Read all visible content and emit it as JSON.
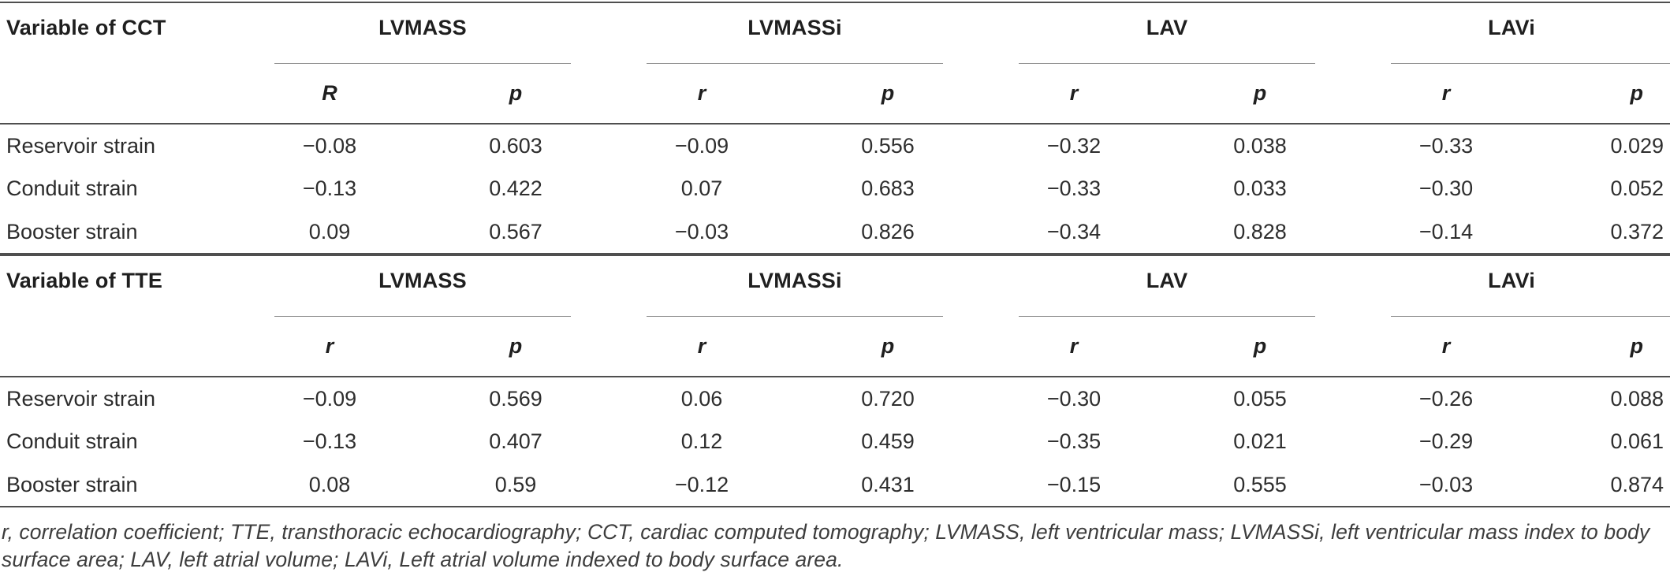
{
  "sections": [
    {
      "label": "Variable of CCT",
      "groups": [
        "LVMASS",
        "LVMASSi",
        "LAV",
        "LAVi"
      ],
      "subheaders": [
        "R",
        "p",
        "r",
        "p",
        "r",
        "p",
        "r",
        "p"
      ],
      "rows": [
        {
          "label": "Reservoir strain",
          "values": [
            "−0.08",
            "0.603",
            "−0.09",
            "0.556",
            "−0.32",
            "0.038",
            "−0.33",
            "0.029"
          ]
        },
        {
          "label": "Conduit strain",
          "values": [
            "−0.13",
            "0.422",
            "0.07",
            "0.683",
            "−0.33",
            "0.033",
            "−0.30",
            "0.052"
          ]
        },
        {
          "label": "Booster strain",
          "values": [
            "0.09",
            "0.567",
            "−0.03",
            "0.826",
            "−0.34",
            "0.828",
            "−0.14",
            "0.372"
          ]
        }
      ]
    },
    {
      "label": "Variable of TTE",
      "groups": [
        "LVMASS",
        "LVMASSi",
        "LAV",
        "LAVi"
      ],
      "subheaders": [
        "r",
        "p",
        "r",
        "p",
        "r",
        "p",
        "r",
        "p"
      ],
      "rows": [
        {
          "label": "Reservoir strain",
          "values": [
            "−0.09",
            "0.569",
            "0.06",
            "0.720",
            "−0.30",
            "0.055",
            "−0.26",
            "0.088"
          ]
        },
        {
          "label": "Conduit strain",
          "values": [
            "−0.13",
            "0.407",
            "0.12",
            "0.459",
            "−0.35",
            "0.021",
            "−0.29",
            "0.061"
          ]
        },
        {
          "label": "Booster strain",
          "values": [
            "0.08",
            "0.59",
            "−0.12",
            "0.431",
            "−0.15",
            "0.555",
            "−0.03",
            "0.874"
          ]
        }
      ]
    }
  ],
  "footnote": "r, correlation coefficient; TTE, transthoracic echocardiography; CCT, cardiac computed tomography; LVMASS, left ventricular mass; LVMASSi, left ventricular mass index to body surface area; LAV, left atrial volume; LAVi, Left atrial volume indexed to body surface area.",
  "colors": {
    "rule_heavy": "#4f4f4f",
    "rule_light": "#8c8c8c",
    "text_header": "#1f1f1f",
    "text_body": "#2e2e2e",
    "text_footnote": "#3d3d3d",
    "background": "#ffffff"
  }
}
